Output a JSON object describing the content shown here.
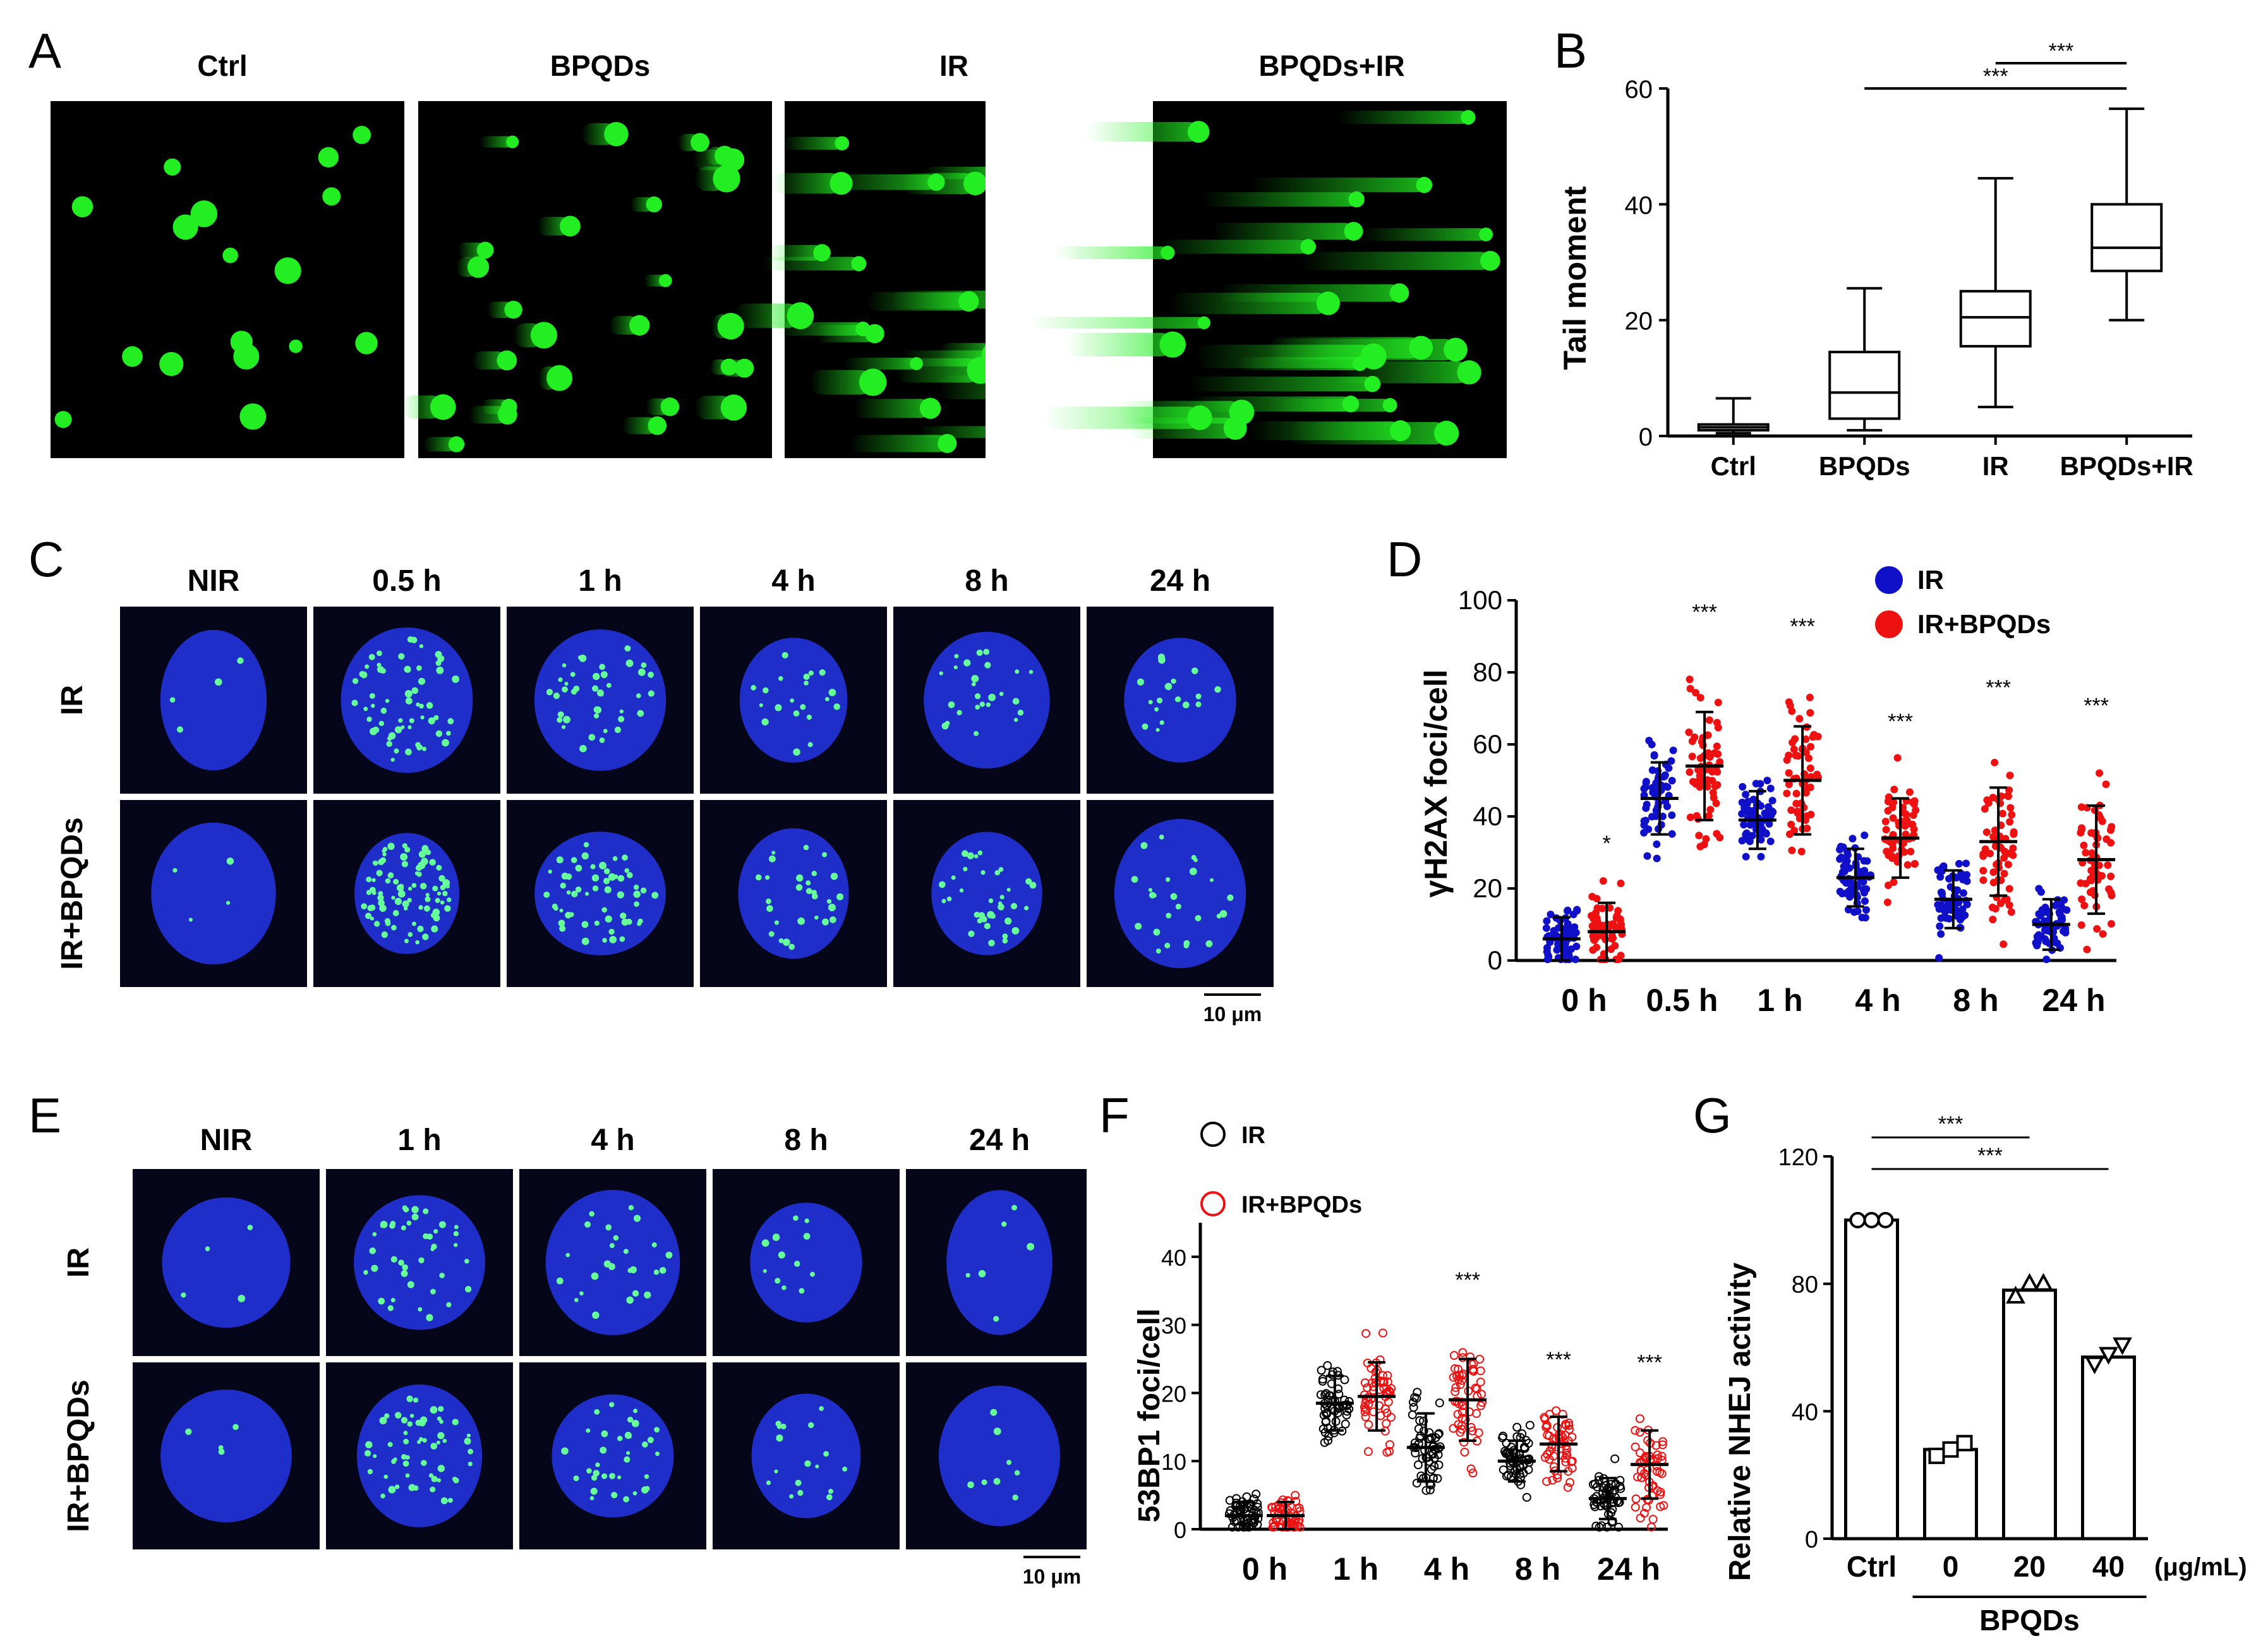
{
  "panels": {
    "A": {
      "letter": "A",
      "columns": [
        "Ctrl",
        "BPQDs",
        "IR",
        "BPQDs+IR"
      ]
    },
    "B": {
      "letter": "B"
    },
    "C": {
      "letter": "C",
      "columns": [
        "NIR",
        "0.5 h",
        "1 h",
        "4 h",
        "8 h",
        "24 h"
      ],
      "rows": [
        "IR",
        "IR+BPQDs"
      ],
      "scale_bar": "10 μm"
    },
    "D": {
      "letter": "D"
    },
    "E": {
      "letter": "E",
      "columns": [
        "NIR",
        "1 h",
        "4 h",
        "8 h",
        "24 h"
      ],
      "rows": [
        "IR",
        "IR+BPQDs"
      ],
      "scale_bar": "10 μm"
    },
    "F": {
      "letter": "F"
    },
    "G": {
      "letter": "G"
    }
  },
  "colors": {
    "ir_blue": "#1010c8",
    "irbp_red": "#ee1111",
    "comet_green": "#22ee22",
    "nucleus_blue": "#2233dd"
  },
  "chart_data": [
    {
      "id": "B",
      "type": "box",
      "title": "",
      "ylabel": "Tail moment",
      "ylim": [
        0,
        60
      ],
      "yticks": [
        0,
        20,
        40,
        60
      ],
      "categories": [
        "Ctrl",
        "BPQDs",
        "IR",
        "BPQDs+IR"
      ],
      "boxes": [
        {
          "min": 0.5,
          "q1": 1,
          "median": 1.5,
          "q3": 2,
          "max": 6.5
        },
        {
          "min": 1,
          "q1": 3,
          "median": 7.5,
          "q3": 14.5,
          "max": 25.5
        },
        {
          "min": 5,
          "q1": 15.5,
          "median": 20.5,
          "q3": 25,
          "max": 44.5
        },
        {
          "min": 20,
          "q1": 28.5,
          "median": 32.5,
          "q3": 40,
          "max": 56.5
        }
      ],
      "significance": [
        {
          "from": "IR",
          "to": "BPQDs+IR",
          "label": "***"
        },
        {
          "from": "BPQDs",
          "to": "BPQDs+IR",
          "label": "***"
        }
      ]
    },
    {
      "id": "D",
      "type": "scatter",
      "ylabel": "γH2AX foci/cell",
      "ylim": [
        0,
        100
      ],
      "yticks": [
        0,
        20,
        40,
        60,
        80,
        100
      ],
      "categories": [
        "0 h",
        "0.5 h",
        "1 h",
        "4 h",
        "8 h",
        "24 h"
      ],
      "series": [
        {
          "name": "IR",
          "color": "#1010c8",
          "means": [
            6,
            45,
            39,
            23,
            17,
            10
          ],
          "sd": [
            6,
            10,
            8,
            8,
            8,
            7
          ]
        },
        {
          "name": "IR+BPQDs",
          "color": "#ee1111",
          "means": [
            8,
            54,
            50,
            34,
            33,
            28
          ],
          "sd": [
            8,
            15,
            15,
            11,
            15,
            15
          ]
        }
      ],
      "annotations": [
        "*",
        "***",
        "***",
        "***",
        "***",
        "***"
      ]
    },
    {
      "id": "F",
      "type": "scatter",
      "ylabel": "53BP1 foci/cell",
      "ylim": [
        0,
        45
      ],
      "yticks": [
        0,
        10,
        20,
        30,
        40
      ],
      "categories": [
        "0 h",
        "1 h",
        "4 h",
        "8 h",
        "24 h"
      ],
      "series": [
        {
          "name": "IR",
          "color": "#000000",
          "means": [
            2,
            18.5,
            12,
            10,
            4.5
          ],
          "sd": [
            2,
            4,
            5,
            3,
            3
          ]
        },
        {
          "name": "IR+BPQDs",
          "color": "#ee1111",
          "means": [
            2,
            19.5,
            19,
            12.5,
            9.5
          ],
          "sd": [
            2,
            5,
            6,
            4,
            5
          ]
        }
      ],
      "annotations": [
        "",
        "",
        "***",
        "***",
        "***"
      ]
    },
    {
      "id": "G",
      "type": "bar",
      "ylabel": "Relative NHEJ activity",
      "ylim": [
        0,
        120
      ],
      "yticks": [
        0,
        40,
        80,
        120
      ],
      "categories": [
        "Ctrl",
        "0",
        "20",
        "40"
      ],
      "unit": "(μg/mL)",
      "group_label": "BPQDs",
      "values": [
        100,
        28,
        78,
        57
      ],
      "points": [
        [
          100,
          100,
          100
        ],
        [
          26,
          28,
          30
        ],
        [
          76,
          80,
          80
        ],
        [
          55,
          58,
          61
        ]
      ],
      "significance": [
        {
          "from": "Ctrl",
          "to": "20",
          "label": "***"
        },
        {
          "from": "Ctrl",
          "to": "40",
          "label": "***"
        }
      ]
    }
  ]
}
